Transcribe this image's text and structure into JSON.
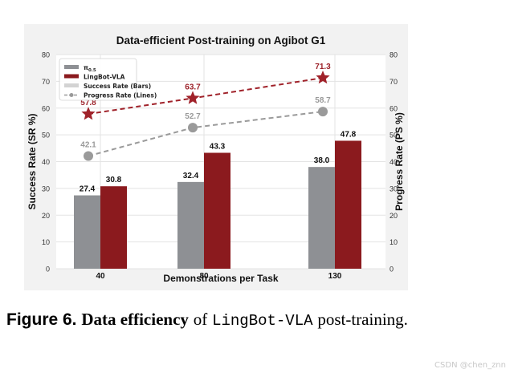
{
  "chart_data": {
    "type": "bar",
    "title": "Data-efficient Post-training on Agibot G1",
    "xlabel": "Demonstrations per Task",
    "ylabel": "Success Rate (SR %)",
    "y2label": "Progress Rate (PS %)",
    "categories": [
      "40",
      "80",
      "130"
    ],
    "ylim": [
      0,
      80
    ],
    "y2lim": [
      0,
      80
    ],
    "yticks": [
      "0",
      "10",
      "20",
      "30",
      "40",
      "50",
      "60",
      "70",
      "80"
    ],
    "grid": true,
    "legend_position": "top-left",
    "bar_series": [
      {
        "name": "π0.5",
        "color": "#8e9094",
        "values": [
          27.4,
          32.4,
          38.0
        ],
        "labels": [
          "27.4",
          "32.4",
          "38.0"
        ]
      },
      {
        "name": "LingBot-VLA",
        "color": "#8b1a1e",
        "values": [
          30.8,
          43.3,
          47.8
        ],
        "labels": [
          "30.8",
          "43.3",
          "47.8"
        ]
      }
    ],
    "line_series": [
      {
        "name": "π0.5",
        "color": "#9a9a9a",
        "marker": "circle",
        "values": [
          42.1,
          52.7,
          58.7
        ],
        "labels": [
          "42.1",
          "52.7",
          "58.7"
        ]
      },
      {
        "name": "LingBot-VLA",
        "color": "#a0222a",
        "marker": "star",
        "values": [
          57.8,
          63.7,
          71.3
        ],
        "labels": [
          "57.8",
          "63.7",
          "71.3"
        ]
      }
    ],
    "legend": [
      {
        "label_main": "π",
        "label_sub": "0.5",
        "kind": "bar",
        "color": "#8e9094"
      },
      {
        "label_main": "LingBot-VLA",
        "label_sub": "",
        "kind": "bar",
        "color": "#8b1a1e"
      },
      {
        "label_main": "Success Rate (Bars)",
        "label_sub": "",
        "kind": "bar",
        "color": "#d3d3d3"
      },
      {
        "label_main": "Progress Rate (Lines)",
        "label_sub": "",
        "kind": "line",
        "color": "#9a9a9a"
      }
    ]
  },
  "caption": {
    "figure": "Figure 6.",
    "bold": "Data efficiency",
    "of": "of",
    "model": "LingBot-VLA",
    "rest": "post-training."
  },
  "watermark": "CSDN @chen_znn"
}
